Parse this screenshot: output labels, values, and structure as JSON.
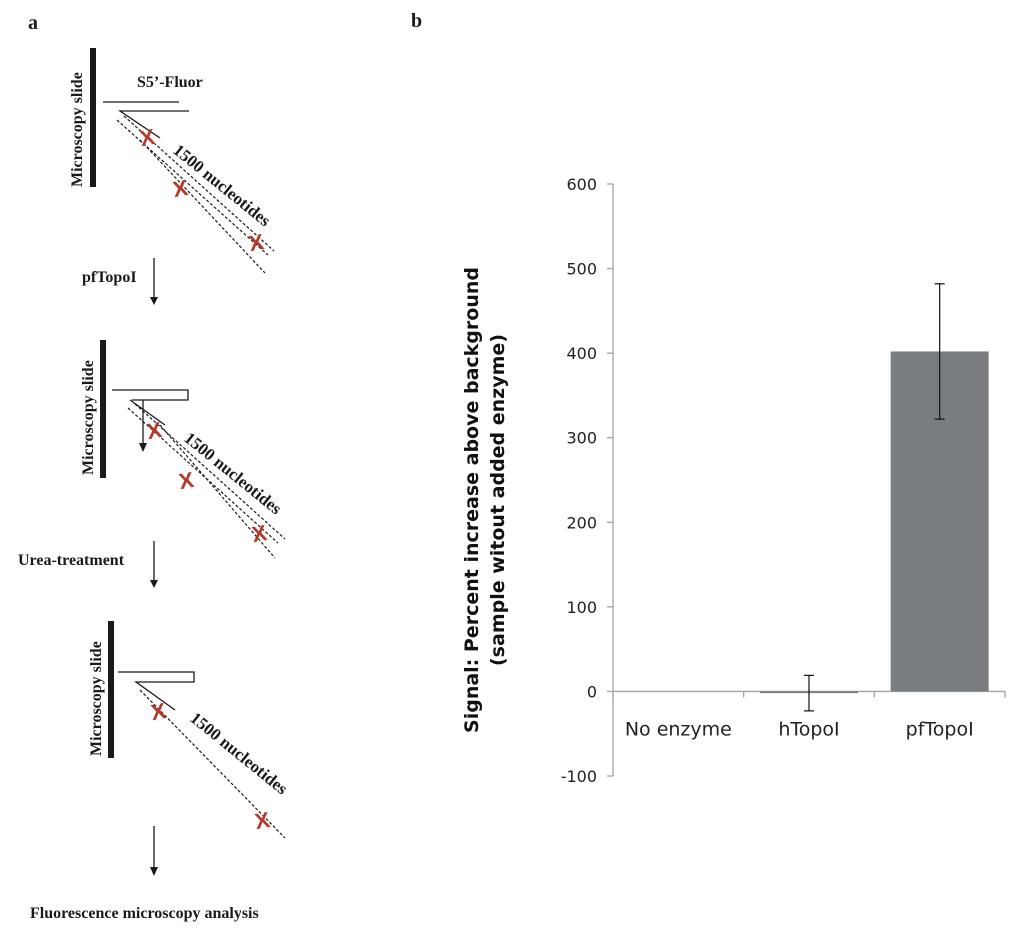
{
  "panel_a": {
    "label": "a",
    "slide_label": "Microscopy slide",
    "probe_label": "S5’-Fluor",
    "length_label": "1500 nucleotides",
    "step1": "pfTopoI",
    "step2": "Urea-treatment",
    "final": "Fluorescence microscopy analysis",
    "mark": "X",
    "colors": {
      "mark": "#b33a2a",
      "ink": "#1a1a1a"
    }
  },
  "panel_b": {
    "label": "b"
  },
  "chart_data": {
    "type": "bar",
    "categories": [
      "No enzyme",
      "hTopoI",
      "pfTopoI"
    ],
    "values": [
      0,
      -2,
      402
    ],
    "error": [
      0,
      21,
      80
    ],
    "ylabel": "Signal: Percent increase above background",
    "ylabel2": "(sample witout added enzyme)",
    "yticks": [
      -100,
      0,
      100,
      200,
      300,
      400,
      500,
      600
    ],
    "ylim": [
      -100,
      600
    ],
    "bar_color": "#7a7d80",
    "axis_color": "#a0a4a8"
  }
}
